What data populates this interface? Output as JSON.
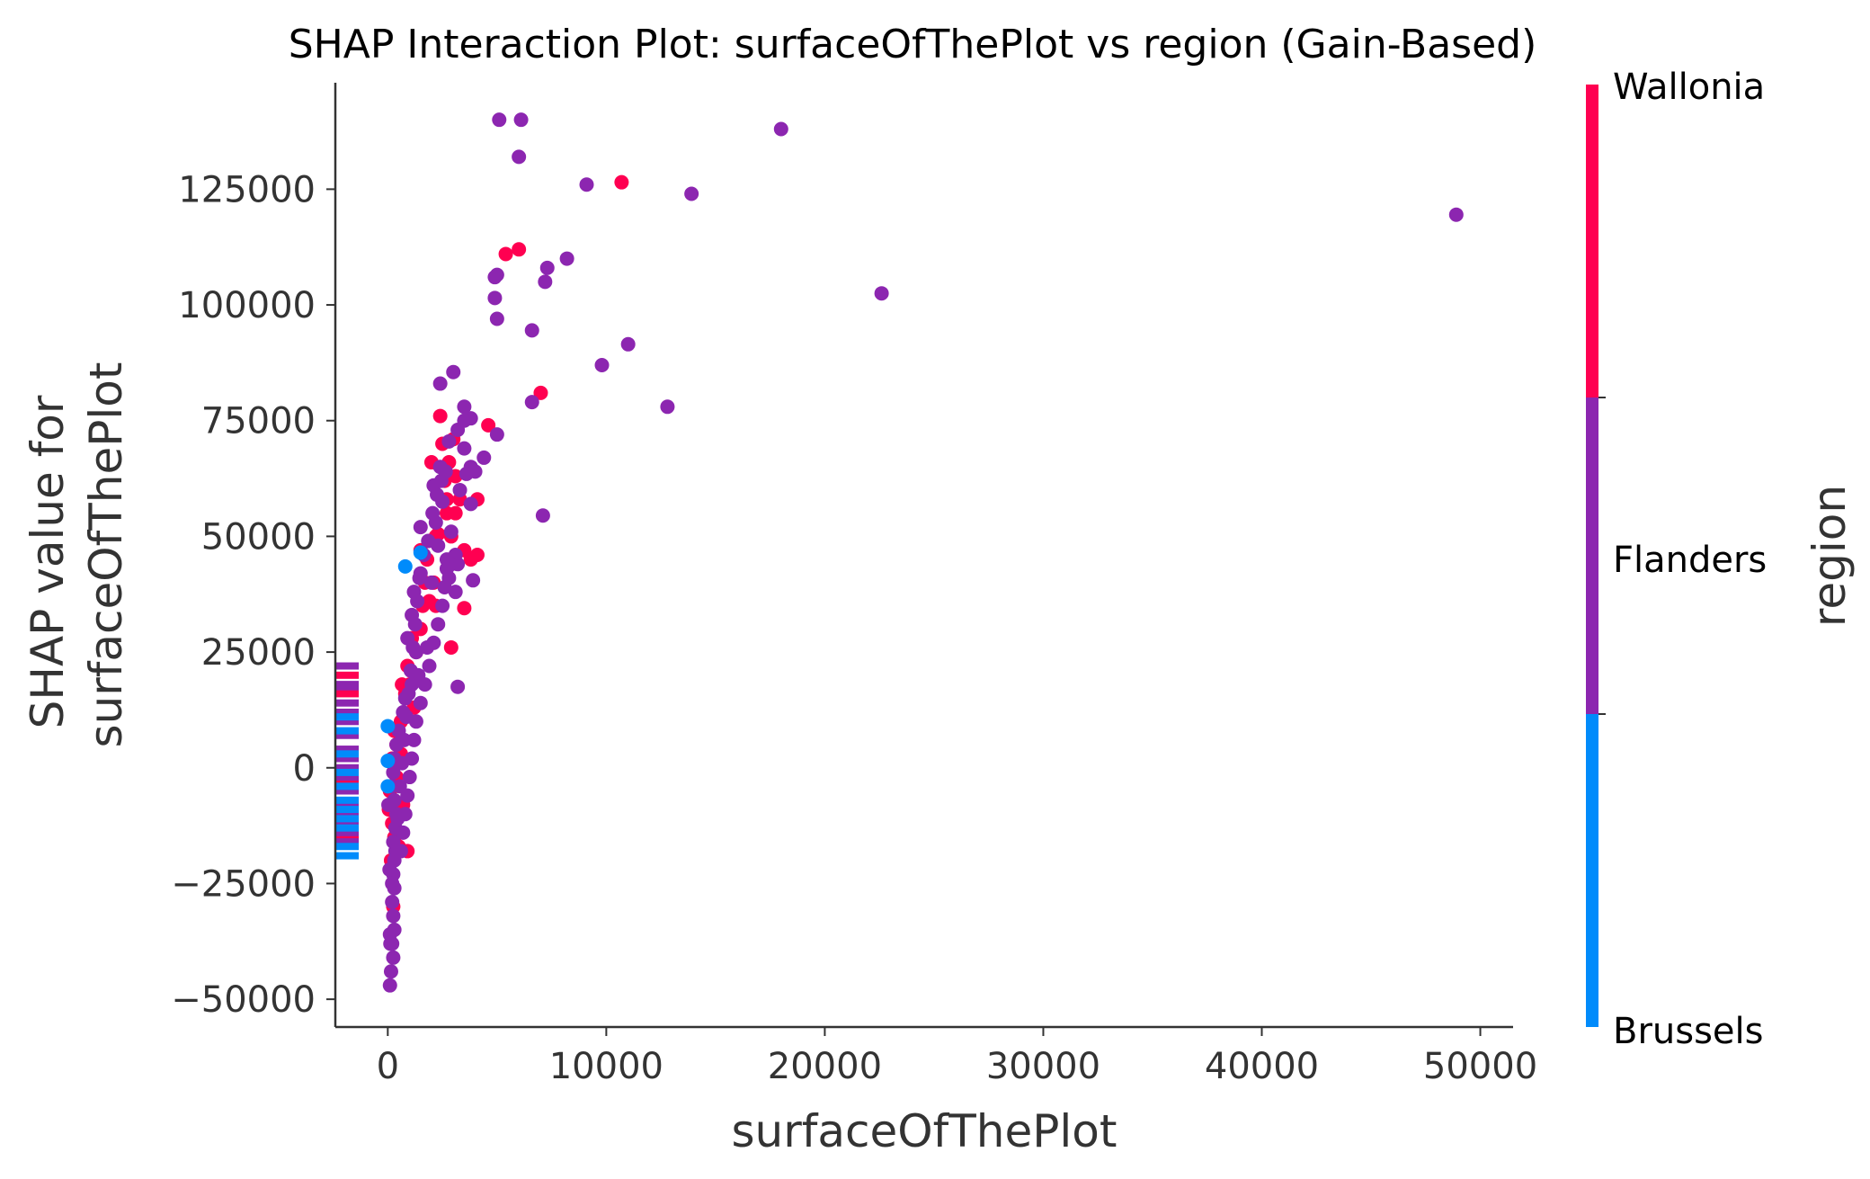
{
  "chart_data": {
    "type": "scatter",
    "title": "SHAP Interaction Plot: surfaceOfThePlot vs region (Gain-Based)",
    "xlabel": "surfaceOfThePlot",
    "ylabel": [
      "SHAP value for",
      "surfaceOfThePlot"
    ],
    "xlim": [
      -2400,
      51500
    ],
    "ylim": [
      -56000,
      148000
    ],
    "xticks": [
      0,
      10000,
      20000,
      30000,
      40000,
      50000
    ],
    "xtick_labels": [
      "0",
      "10000",
      "20000",
      "30000",
      "40000",
      "50000"
    ],
    "yticks": [
      -50000,
      -25000,
      0,
      25000,
      50000,
      75000,
      100000,
      125000
    ],
    "ytick_labels": [
      "−50000",
      "−25000",
      "0",
      "25000",
      "50000",
      "75000",
      "100000",
      "125000"
    ],
    "grid": false,
    "colorbar": {
      "label": "region",
      "categories": [
        "Brussels",
        "Flanders",
        "Wallonia"
      ],
      "colors": {
        "Brussels": "#008bfb",
        "Flanders": "#8c26b0",
        "Wallonia": "#ff0051"
      }
    },
    "series": [
      {
        "name": "Wallonia",
        "color": "#ff0051",
        "points": [
          [
            10700,
            126500
          ],
          [
            6000,
            112000
          ],
          [
            5400,
            111000
          ],
          [
            7000,
            81000
          ],
          [
            4600,
            74000
          ],
          [
            2400,
            76000
          ],
          [
            2500,
            70000
          ],
          [
            3000,
            71000
          ],
          [
            2800,
            66000
          ],
          [
            3300,
            58000
          ],
          [
            4100,
            58000
          ],
          [
            4100,
            46000
          ],
          [
            2700,
            55000
          ],
          [
            2200,
            50000
          ],
          [
            1800,
            45000
          ],
          [
            3500,
            47000
          ],
          [
            1900,
            36000
          ],
          [
            2200,
            35000
          ],
          [
            3500,
            34500
          ],
          [
            2900,
            26000
          ],
          [
            1700,
            40000
          ],
          [
            1500,
            30000
          ],
          [
            1300,
            25000
          ],
          [
            1000,
            18000
          ],
          [
            1200,
            13000
          ],
          [
            800,
            16000
          ],
          [
            600,
            10000
          ],
          [
            400,
            5000
          ],
          [
            200,
            2000
          ],
          [
            100,
            -5000
          ],
          [
            50,
            -9000
          ],
          [
            200,
            -12000
          ],
          [
            300,
            -15000
          ],
          [
            500,
            -17000
          ],
          [
            700,
            -8000
          ],
          [
            900,
            -18000
          ],
          [
            2000,
            66000
          ],
          [
            2600,
            62000
          ],
          [
            3100,
            55000
          ],
          [
            2100,
            40000
          ],
          [
            1600,
            35000
          ],
          [
            1100,
            28000
          ],
          [
            900,
            22000
          ],
          [
            650,
            18000
          ],
          [
            300,
            8000
          ],
          [
            2300,
            50500
          ],
          [
            2900,
            50000
          ],
          [
            3800,
            45000
          ],
          [
            3100,
            63000
          ],
          [
            2700,
            58000
          ],
          [
            1500,
            47000
          ],
          [
            600,
            3000
          ],
          [
            400,
            -2000
          ],
          [
            150,
            -20000
          ],
          [
            250,
            -30000
          ],
          [
            -1000,
            16000
          ],
          [
            -1000,
            -3000
          ],
          [
            -1000,
            -15000
          ],
          [
            -1000,
            20000
          ]
        ]
      },
      {
        "name": "Flanders",
        "color": "#8c26b0",
        "points": [
          [
            5100,
            140000
          ],
          [
            6100,
            140000
          ],
          [
            18000,
            138000
          ],
          [
            6000,
            132000
          ],
          [
            9100,
            126000
          ],
          [
            13900,
            124000
          ],
          [
            48900,
            119500
          ],
          [
            8200,
            110000
          ],
          [
            7300,
            108000
          ],
          [
            7200,
            105000
          ],
          [
            5000,
            106500
          ],
          [
            4900,
            106000
          ],
          [
            22600,
            102500
          ],
          [
            4900,
            101500
          ],
          [
            5000,
            97000
          ],
          [
            6600,
            94500
          ],
          [
            11000,
            91500
          ],
          [
            9800,
            87000
          ],
          [
            3000,
            85500
          ],
          [
            2400,
            83000
          ],
          [
            12800,
            78000
          ],
          [
            3500,
            78000
          ],
          [
            6600,
            79000
          ],
          [
            3800,
            75500
          ],
          [
            3500,
            75000
          ],
          [
            3200,
            73000
          ],
          [
            5000,
            72000
          ],
          [
            2800,
            70500
          ],
          [
            3500,
            69000
          ],
          [
            4400,
            67000
          ],
          [
            3800,
            65000
          ],
          [
            4000,
            64000
          ],
          [
            3600,
            63500
          ],
          [
            2100,
            61000
          ],
          [
            2400,
            65000
          ],
          [
            3300,
            60000
          ],
          [
            3800,
            57000
          ],
          [
            2500,
            57500
          ],
          [
            2200,
            53000
          ],
          [
            1500,
            52000
          ],
          [
            7100,
            54500
          ],
          [
            2900,
            51000
          ],
          [
            2300,
            48000
          ],
          [
            3100,
            46000
          ],
          [
            2900,
            44000
          ],
          [
            3200,
            44000
          ],
          [
            2700,
            45000
          ],
          [
            3900,
            40500
          ],
          [
            2800,
            41000
          ],
          [
            3100,
            38000
          ],
          [
            2000,
            40000
          ],
          [
            1500,
            42000
          ],
          [
            1200,
            38000
          ],
          [
            1100,
            33000
          ],
          [
            900,
            28000
          ],
          [
            1300,
            25000
          ],
          [
            1800,
            26000
          ],
          [
            3200,
            17500
          ],
          [
            1400,
            20000
          ],
          [
            1100,
            18000
          ],
          [
            800,
            15000
          ],
          [
            700,
            12000
          ],
          [
            500,
            8000
          ],
          [
            400,
            5000
          ],
          [
            300,
            2000
          ],
          [
            250,
            -1000
          ],
          [
            200,
            -4000
          ],
          [
            300,
            -7000
          ],
          [
            400,
            -10000
          ],
          [
            350,
            -13000
          ],
          [
            250,
            -16000
          ],
          [
            300,
            -20000
          ],
          [
            250,
            -23000
          ],
          [
            300,
            -26000
          ],
          [
            200,
            -29000
          ],
          [
            250,
            -32000
          ],
          [
            300,
            -35000
          ],
          [
            200,
            -38000
          ],
          [
            250,
            -41000
          ],
          [
            150,
            -44000
          ],
          [
            100,
            -47000
          ],
          [
            600,
            -18000
          ],
          [
            700,
            -14000
          ],
          [
            800,
            -10000
          ],
          [
            900,
            -6000
          ],
          [
            1000,
            -2000
          ],
          [
            1100,
            2000
          ],
          [
            1200,
            6000
          ],
          [
            1300,
            10000
          ],
          [
            1500,
            14000
          ],
          [
            1700,
            18000
          ],
          [
            1900,
            22000
          ],
          [
            2100,
            27000
          ],
          [
            2300,
            31000
          ],
          [
            2500,
            35000
          ],
          [
            2600,
            39000
          ],
          [
            2700,
            43000
          ],
          [
            -1000,
            22000
          ],
          [
            -1000,
            18000
          ],
          [
            -1000,
            14000
          ],
          [
            -1000,
            12000
          ],
          [
            -1000,
            10000
          ],
          [
            -1000,
            7000
          ],
          [
            -1000,
            4000
          ],
          [
            -1000,
            2000
          ],
          [
            -1000,
            0
          ],
          [
            -1000,
            -2000
          ],
          [
            -1000,
            -5000
          ],
          [
            -1000,
            -8000
          ],
          [
            -1000,
            -10000
          ],
          [
            -1000,
            -12000
          ],
          [
            -1000,
            -14000
          ],
          [
            -1000,
            -16000
          ],
          [
            100,
            -36000
          ],
          [
            200,
            -25000
          ],
          [
            350,
            -18000
          ],
          [
            450,
            -11000
          ],
          [
            550,
            -4000
          ],
          [
            650,
            1000
          ],
          [
            750,
            6000
          ],
          [
            850,
            11000
          ],
          [
            950,
            16000
          ],
          [
            1050,
            21000
          ],
          [
            1150,
            26000
          ],
          [
            1250,
            31000
          ],
          [
            1350,
            36000
          ],
          [
            1450,
            41000
          ],
          [
            1650,
            46000
          ],
          [
            1850,
            49000
          ],
          [
            2050,
            55000
          ],
          [
            2250,
            59000
          ],
          [
            2450,
            62000
          ],
          [
            2650,
            64000
          ],
          [
            -100,
            17500
          ],
          [
            -50,
            4000
          ],
          [
            30,
            -8000
          ],
          [
            80,
            -22000
          ],
          [
            120,
            -38000
          ]
        ]
      },
      {
        "name": "Brussels",
        "color": "#008bfb",
        "points": [
          [
            1500,
            46500
          ],
          [
            800,
            43500
          ],
          [
            0,
            9000
          ],
          [
            0,
            1500
          ],
          [
            0,
            -4000
          ],
          [
            -1000,
            -7000
          ],
          [
            -1000,
            -9000
          ],
          [
            -1000,
            -11000
          ],
          [
            -1000,
            -17000
          ],
          [
            -1000,
            -19000
          ],
          [
            -1000,
            -1000
          ],
          [
            -1000,
            3000
          ],
          [
            -1000,
            8000
          ],
          [
            -1000,
            11000
          ],
          [
            -1000,
            -4000
          ],
          [
            -1000,
            -13000
          ]
        ]
      }
    ]
  }
}
